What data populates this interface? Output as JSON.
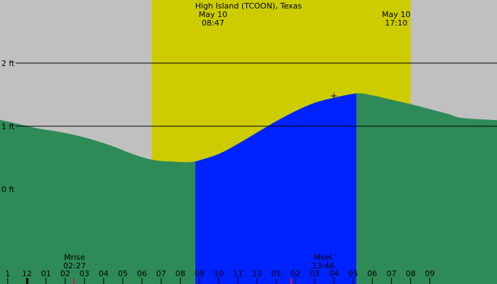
{
  "chart_data": {
    "type": "area",
    "title": "High Island (TCOON), Texas",
    "xlabel": "",
    "ylabel": "",
    "ylim": [
      -1.5,
      3.0
    ],
    "xlim_hours": [
      -1.4,
      24.5
    ],
    "y_tick_labels": [
      {
        "value": 2,
        "label": "2 ft"
      },
      {
        "value": 1,
        "label": "1 ft"
      },
      {
        "value": 0,
        "label": "0 ft"
      }
    ],
    "x_tick_labels": [
      {
        "hour": -1,
        "label": "1"
      },
      {
        "hour": 0,
        "label": "12"
      },
      {
        "hour": 1,
        "label": "01"
      },
      {
        "hour": 2,
        "label": "02"
      },
      {
        "hour": 3,
        "label": "03"
      },
      {
        "hour": 4,
        "label": "04"
      },
      {
        "hour": 5,
        "label": "05"
      },
      {
        "hour": 6,
        "label": "06"
      },
      {
        "hour": 7,
        "label": "07"
      },
      {
        "hour": 8,
        "label": "08"
      },
      {
        "hour": 9,
        "label": "09"
      },
      {
        "hour": 10,
        "label": "10"
      },
      {
        "hour": 11,
        "label": "11"
      },
      {
        "hour": 12,
        "label": "12"
      },
      {
        "hour": 13,
        "label": "01"
      },
      {
        "hour": 14,
        "label": "02"
      },
      {
        "hour": 15,
        "label": "03"
      },
      {
        "hour": 16,
        "label": "04"
      },
      {
        "hour": 17,
        "label": "05"
      },
      {
        "hour": 18,
        "label": "06"
      },
      {
        "hour": 19,
        "label": "07"
      },
      {
        "hour": 20,
        "label": "08"
      },
      {
        "hour": 21,
        "label": "09"
      }
    ],
    "gridlines_ft": [
      2,
      1
    ],
    "tide_series": {
      "x_hours": [
        -1.4,
        -0.5,
        0.5,
        1.5,
        2.5,
        3.5,
        4.5,
        5.5,
        6.5,
        7.5,
        8.78,
        10.0,
        11.0,
        12.0,
        13.0,
        14.0,
        15.0,
        16.0,
        17.17,
        18.0,
        19.0,
        20.0,
        21.0,
        22.0,
        22.7
      ],
      "y_ft": [
        1.1,
        1.04,
        0.97,
        0.92,
        0.86,
        0.78,
        0.68,
        0.56,
        0.47,
        0.44,
        0.44,
        0.56,
        0.72,
        0.9,
        1.08,
        1.24,
        1.37,
        1.45,
        1.52,
        1.49,
        1.42,
        1.35,
        1.27,
        1.19,
        1.13
      ]
    },
    "daylight": {
      "start_hour": 6.5,
      "end_hour": 20.0,
      "color": "#cccc00"
    },
    "highlight": {
      "start_hour": 8.78,
      "end_hour": 17.17,
      "color": "#0022ff"
    },
    "tide_color": "#2e8b57",
    "background_color": "#c0c0c0",
    "events": [
      {
        "date": "May 10",
        "time": "08:47",
        "hour": 8.78
      },
      {
        "date": "May 10",
        "time": "17:10",
        "hour": 17.17
      }
    ],
    "moon": [
      {
        "label": "Mrise",
        "time": "02:27",
        "hour": 2.45
      },
      {
        "label": "Mset",
        "time": "13:46",
        "hour": 13.77
      }
    ]
  }
}
